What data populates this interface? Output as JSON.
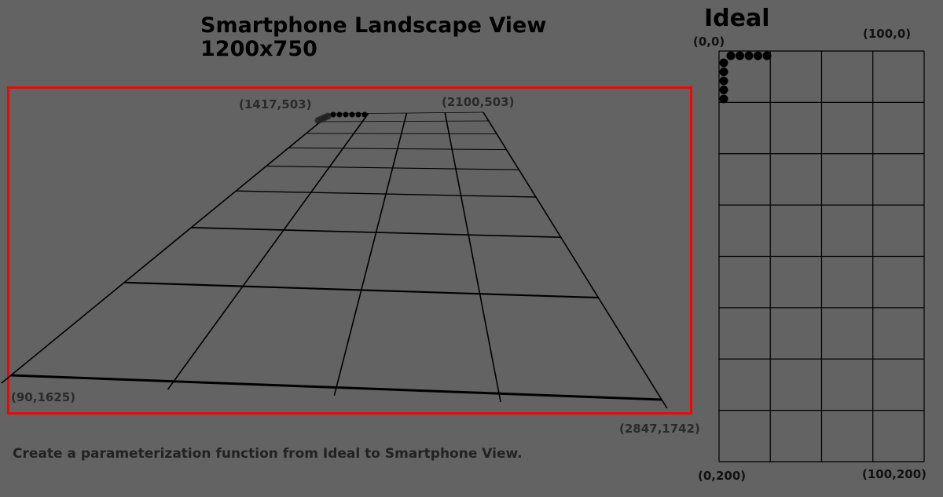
{
  "smartphone": {
    "title_line1": "Smartphone Landscape View",
    "title_line2": "1200x750",
    "corners": {
      "top_left": "(1417,503)",
      "top_right": "(2100,503)",
      "bottom_left": "(90,1625)",
      "bottom_right": "(2847,1742)"
    },
    "frame_color": "#ff0000"
  },
  "ideal": {
    "title": "Ideal",
    "corners": {
      "top_left": "(0,0)",
      "top_right": "(100,0)",
      "bottom_left": "(0,200)",
      "bottom_right": "(100,200)"
    },
    "columns": 4,
    "rows": 8
  },
  "instruction": "Create a parameterization function from Ideal to Smartphone View."
}
